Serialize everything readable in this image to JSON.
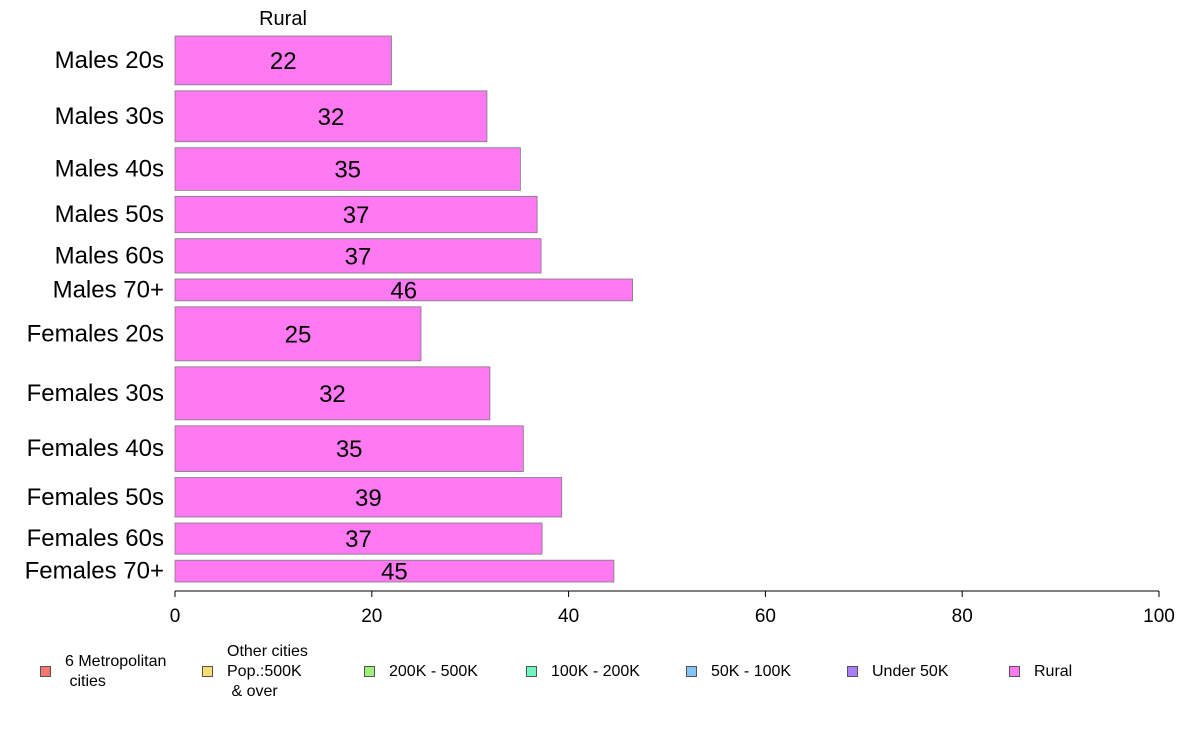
{
  "chart_data": {
    "type": "bar",
    "orientation": "horizontal",
    "panel_title": "Rural",
    "categories": [
      "Males 20s",
      "Males 30s",
      "Males 40s",
      "Males 50s",
      "Males 60s",
      "Males 70+",
      "Females 20s",
      "Females 30s",
      "Females 40s",
      "Females 50s",
      "Females 60s",
      "Females 70+"
    ],
    "values": [
      22,
      31.7,
      35.1,
      36.8,
      37.2,
      46.5,
      25,
      32,
      35.4,
      39.3,
      37.3,
      44.6
    ],
    "value_labels": [
      "22",
      "32",
      "35",
      "37",
      "37",
      "46",
      "25",
      "32",
      "35",
      "39",
      "37",
      "45"
    ],
    "bar_weights": [
      47,
      49,
      41,
      35,
      33,
      21,
      52,
      51,
      44,
      38,
      30,
      21
    ],
    "xlim": [
      0,
      100
    ],
    "xticks": [
      "0",
      "20",
      "40",
      "60",
      "80",
      "100"
    ],
    "bar_color": "#FF79F2",
    "grid": false,
    "legend": [
      {
        "label": "6 Metropolitan\n cities",
        "color": "#F8766D"
      },
      {
        "label": "Other cities\nPop.:500K\n & over",
        "color": "#F6DC74"
      },
      {
        "label": "200K - 500K",
        "color": "#9EF07A"
      },
      {
        "label": "100K - 200K",
        "color": "#6EF5C3"
      },
      {
        "label": "50K - 100K",
        "color": "#82C5F4"
      },
      {
        "label": "Under 50K",
        "color": "#A97DF4"
      },
      {
        "label": "Rural",
        "color": "#FF79F2"
      }
    ]
  }
}
